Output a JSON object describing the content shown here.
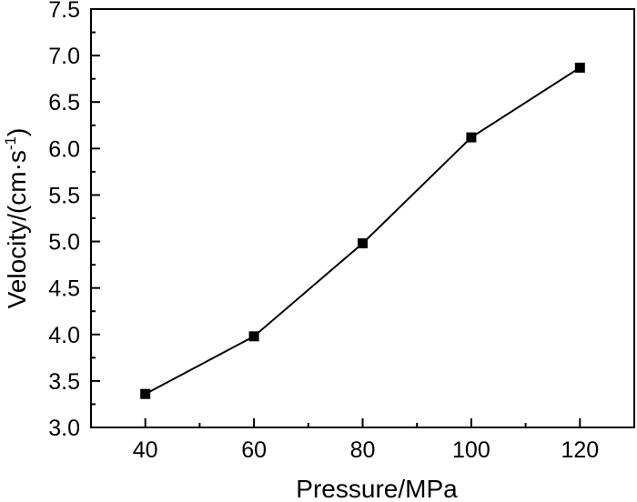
{
  "chart_data": {
    "type": "line",
    "xlabel": "Pressure/MPa",
    "ylabel": "Velocity/(cm·s",
    "ylabel_superscript": "-1",
    "ylabel_suffix": ")",
    "xlim": [
      30,
      130
    ],
    "ylim": [
      3.0,
      7.5
    ],
    "x_ticks": [
      40,
      60,
      80,
      100,
      120
    ],
    "x_tick_labels": [
      "40",
      "60",
      "80",
      "100",
      "120"
    ],
    "y_ticks": [
      3.0,
      3.5,
      4.0,
      4.5,
      5.0,
      5.5,
      6.0,
      6.5,
      7.0,
      7.5
    ],
    "y_tick_labels": [
      "3.0",
      "3.5",
      "4.0",
      "4.5",
      "5.0",
      "5.5",
      "6.0",
      "6.5",
      "7.0",
      "7.5"
    ],
    "grid": false,
    "marker": "square",
    "series": [
      {
        "x": [
          40,
          60,
          80,
          100,
          120
        ],
        "values": [
          3.36,
          3.98,
          4.98,
          6.12,
          6.87
        ]
      }
    ]
  }
}
